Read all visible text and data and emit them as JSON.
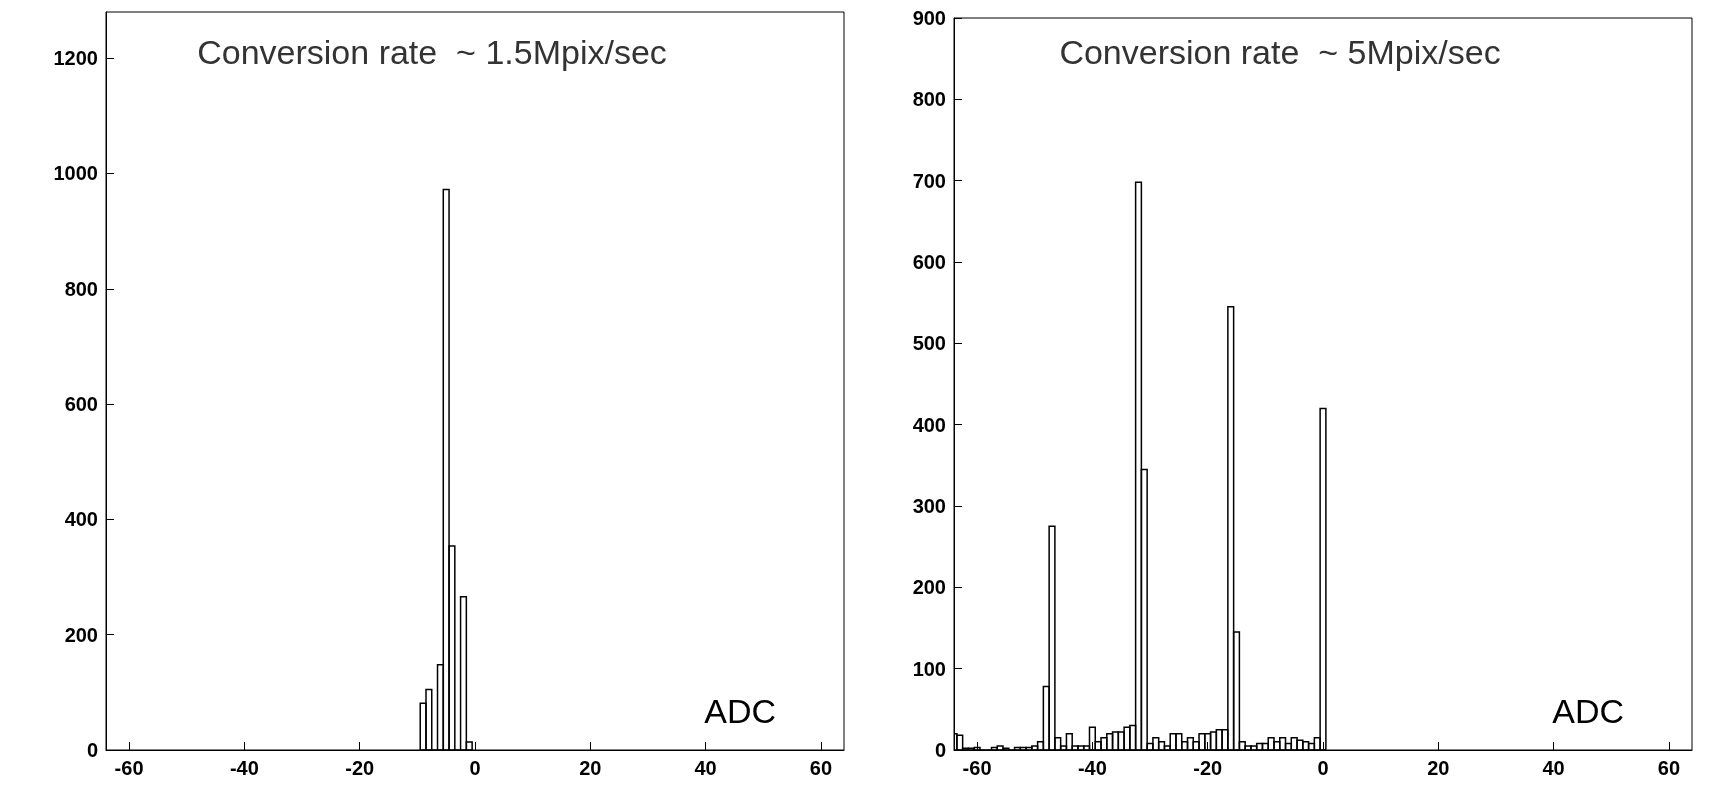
{
  "chart_data": [
    {
      "type": "histogram",
      "title": "Conversion rate  ~ 1.5Mpix/sec",
      "xlabel": "ADC",
      "color": "#000000",
      "bins": [
        -9.5,
        -8.5,
        -7.5,
        -6.5,
        -5.5,
        -4.5,
        -3.5,
        -2.5,
        -1.5,
        -0.5
      ],
      "values": [
        81,
        105,
        0,
        148,
        972,
        354,
        0,
        266,
        14
      ],
      "xlim": [
        -64,
        64
      ],
      "xticks": [
        -60,
        -40,
        -20,
        0,
        20,
        40,
        60
      ],
      "ylim": [
        0,
        1280
      ],
      "yticks": [
        0,
        200,
        400,
        600,
        800,
        1000,
        1200
      ],
      "grid": false
    },
    {
      "type": "histogram",
      "title": "Conversion rate  ~ 5Mpix/sec",
      "xlabel": "ADC",
      "color": "#000000",
      "bins": [
        -64.5,
        -63.5,
        -62.5,
        -61.5,
        -60.5,
        -59.5,
        -58.5,
        -57.5,
        -56.5,
        -55.5,
        -54.5,
        -53.5,
        -52.5,
        -51.5,
        -50.5,
        -49.5,
        -48.5,
        -47.5,
        -46.5,
        -45.5,
        -44.5,
        -43.5,
        -42.5,
        -41.5,
        -40.5,
        -39.5,
        -38.5,
        -37.5,
        -36.5,
        -35.5,
        -34.5,
        -33.5,
        -32.5,
        -31.5,
        -30.5,
        -29.5,
        -28.5,
        -27.5,
        -26.5,
        -25.5,
        -24.5,
        -23.5,
        -22.5,
        -21.5,
        -20.5,
        -19.5,
        -18.5,
        -17.5,
        -16.5,
        -15.5,
        -14.5,
        -13.5,
        -12.5,
        -11.5,
        -10.5,
        -9.5,
        -8.5,
        -7.5,
        -6.5,
        -5.5,
        -4.5,
        -3.5,
        -2.5,
        -1.5,
        -0.5,
        0.5
      ],
      "values": [
        20,
        18,
        2,
        2,
        3,
        0,
        0,
        3,
        5,
        2,
        0,
        3,
        3,
        3,
        5,
        10,
        78,
        275,
        15,
        5,
        20,
        5,
        5,
        5,
        28,
        10,
        15,
        20,
        22,
        22,
        28,
        30,
        698,
        345,
        8,
        15,
        10,
        5,
        20,
        20,
        10,
        15,
        10,
        20,
        20,
        22,
        25,
        25,
        545,
        145,
        10,
        5,
        5,
        8,
        8,
        15,
        10,
        15,
        8,
        15,
        12,
        10,
        8,
        15,
        420
      ],
      "xlim": [
        -64,
        64
      ],
      "xticks": [
        -60,
        -40,
        -20,
        0,
        20,
        40,
        60
      ],
      "ylim": [
        0,
        900
      ],
      "yticks": [
        0,
        100,
        200,
        300,
        400,
        500,
        600,
        700,
        800,
        900
      ],
      "grid": false
    }
  ]
}
